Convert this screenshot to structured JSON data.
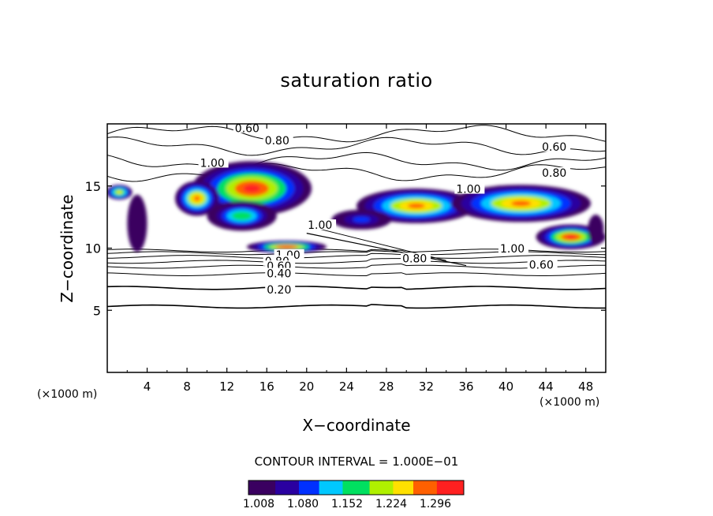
{
  "chart_data": {
    "type": "heatmap",
    "title": "saturation ratio",
    "xlabel": "X−coordinate",
    "ylabel": "Z−coordinate",
    "x_unit": "(×1000 m)",
    "y_unit": "(×1000 m)",
    "xlim": [
      0,
      50
    ],
    "ylim": [
      0,
      20
    ],
    "x_ticks": [
      "4",
      "8",
      "12",
      "16",
      "20",
      "24",
      "28",
      "32",
      "36",
      "40",
      "44",
      "48"
    ],
    "y_ticks": [
      "5",
      "10",
      "15"
    ],
    "contour_interval_text": "CONTOUR INTERVAL = 1.000E−01",
    "colorbar": {
      "min": 1.008,
      "max": 1.32,
      "tick_labels": [
        "1.008",
        "1.080",
        "1.152",
        "1.224",
        "1.296"
      ],
      "colors": [
        "#3a0060",
        "#2a00a0",
        "#0030ff",
        "#00c8ff",
        "#00e060",
        "#b0f000",
        "#ffe000",
        "#ff6000",
        "#ff2020"
      ]
    },
    "contour_labels": [
      {
        "text": "0.60",
        "x": 12.8,
        "z": 19.6
      },
      {
        "text": "0.80",
        "x": 15.8,
        "z": 18.6
      },
      {
        "text": "0.60",
        "x": 43.6,
        "z": 18.1
      },
      {
        "text": "0.80",
        "x": 43.6,
        "z": 16.0
      },
      {
        "text": "1.00",
        "x": 9.3,
        "z": 16.8
      },
      {
        "text": "1.00",
        "x": 35.0,
        "z": 14.7
      },
      {
        "text": "1.00",
        "x": 20.1,
        "z": 11.8
      },
      {
        "text": "0.80",
        "x": 29.6,
        "z": 9.1
      },
      {
        "text": "1.00",
        "x": 39.4,
        "z": 9.9
      },
      {
        "text": "0.60",
        "x": 42.3,
        "z": 8.6
      },
      {
        "text": "1.00",
        "x": 16.9,
        "z": 9.4
      },
      {
        "text": "0.80",
        "x": 15.8,
        "z": 8.9
      },
      {
        "text": "0.60",
        "x": 16.0,
        "z": 8.5
      },
      {
        "text": "0.40",
        "x": 16.0,
        "z": 7.9
      },
      {
        "text": "0.20",
        "x": 16.0,
        "z": 6.6
      }
    ],
    "supersaturated_regions": [
      {
        "cx": 14.5,
        "cz": 14.8,
        "rx": 6.0,
        "rz": 2.2,
        "peak": 1.3
      },
      {
        "cx": 9.0,
        "cz": 14.0,
        "rx": 2.2,
        "rz": 1.4,
        "peak": 1.27
      },
      {
        "cx": 3.0,
        "cz": 12.0,
        "rx": 1.0,
        "rz": 2.3,
        "peak": 1.02
      },
      {
        "cx": 13.5,
        "cz": 12.6,
        "rx": 3.5,
        "rz": 1.2,
        "peak": 1.18
      },
      {
        "cx": 18.0,
        "cz": 10.1,
        "rx": 4.0,
        "rz": 0.5,
        "peak": 1.3
      },
      {
        "cx": 31.0,
        "cz": 13.4,
        "rx": 6.0,
        "rz": 1.4,
        "peak": 1.28
      },
      {
        "cx": 41.5,
        "cz": 13.6,
        "rx": 7.0,
        "rz": 1.5,
        "peak": 1.27
      },
      {
        "cx": 46.5,
        "cz": 10.9,
        "rx": 3.5,
        "rz": 1.0,
        "peak": 1.3
      },
      {
        "cx": 49.0,
        "cz": 11.5,
        "rx": 0.8,
        "rz": 1.2,
        "peak": 1.02
      },
      {
        "cx": 25.5,
        "cz": 12.3,
        "rx": 3.0,
        "rz": 0.8,
        "peak": 1.1
      },
      {
        "cx": 1.2,
        "cz": 14.5,
        "rx": 1.3,
        "rz": 0.6,
        "peak": 1.22
      }
    ],
    "contour_levels_horizontal": [
      5.3,
      6.8,
      7.9,
      8.5,
      8.9,
      9.3,
      9.6,
      9.8
    ],
    "upper_contour_levels": [
      19.2,
      18.2,
      17.0,
      16.1
    ]
  }
}
